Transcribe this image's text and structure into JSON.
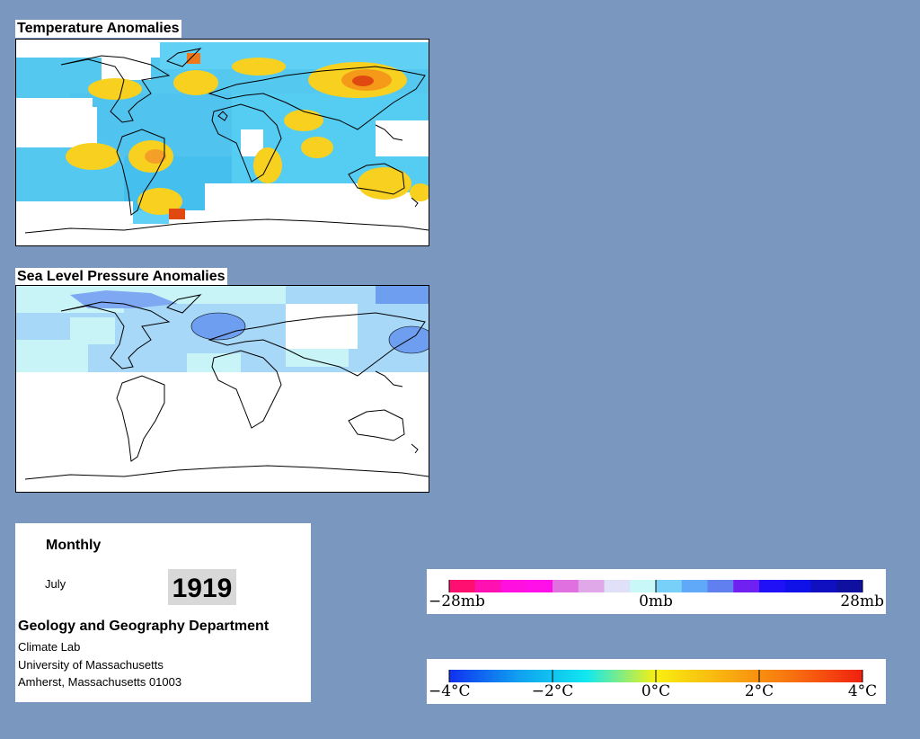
{
  "temperature_map": {
    "title": "Temperature Anomalies",
    "colors": {
      "ocean_fill": "#ffffff",
      "coast": "#000000",
      "cold": "#1ec8f0",
      "cool": "#6ae0f8",
      "warm": "#f8d020",
      "hot": "#f07818",
      "hotter": "#e03c10"
    }
  },
  "pressure_map": {
    "title": "Sea Level Pressure Anomalies",
    "colors": {
      "light": "#c8f4f8",
      "medium": "#a8d8f8",
      "low": "#6e9ef0"
    }
  },
  "info": {
    "frequency": "Monthly",
    "month": "July",
    "year": "1919",
    "department": "Geology and Geography Department",
    "lab": "Climate Lab",
    "university": "University of Massachusetts",
    "address": "Amherst, Massachusetts 01003"
  },
  "pressure_legend": {
    "unit": "mb",
    "colors": [
      "#ff1070",
      "#ff10b0",
      "#ff10e0",
      "#ff10e8",
      "#e070e0",
      "#e0a8e8",
      "#e0e0f8",
      "#c8f8f8",
      "#78d0f8",
      "#60a8f8",
      "#6080f0",
      "#7020f0",
      "#2010f8",
      "#1010e8",
      "#1010c0",
      "#1010a0"
    ],
    "ticks": [
      {
        "label": "−28mb",
        "value": -28
      },
      {
        "label": "0mb",
        "value": 0
      },
      {
        "label": "28mb",
        "value": 28
      }
    ]
  },
  "temperature_legend": {
    "unit": "°C",
    "gradient": [
      "#1030f0",
      "#10a0f0",
      "#10e8f0",
      "#f8f010",
      "#f8b010",
      "#f87010",
      "#f02010"
    ],
    "ticks": [
      {
        "label": "−4°C",
        "value": -4
      },
      {
        "label": "−2°C",
        "value": -2
      },
      {
        "label": "0°C",
        "value": 0
      },
      {
        "label": "2°C",
        "value": 2
      },
      {
        "label": "4°C",
        "value": 4
      }
    ]
  }
}
